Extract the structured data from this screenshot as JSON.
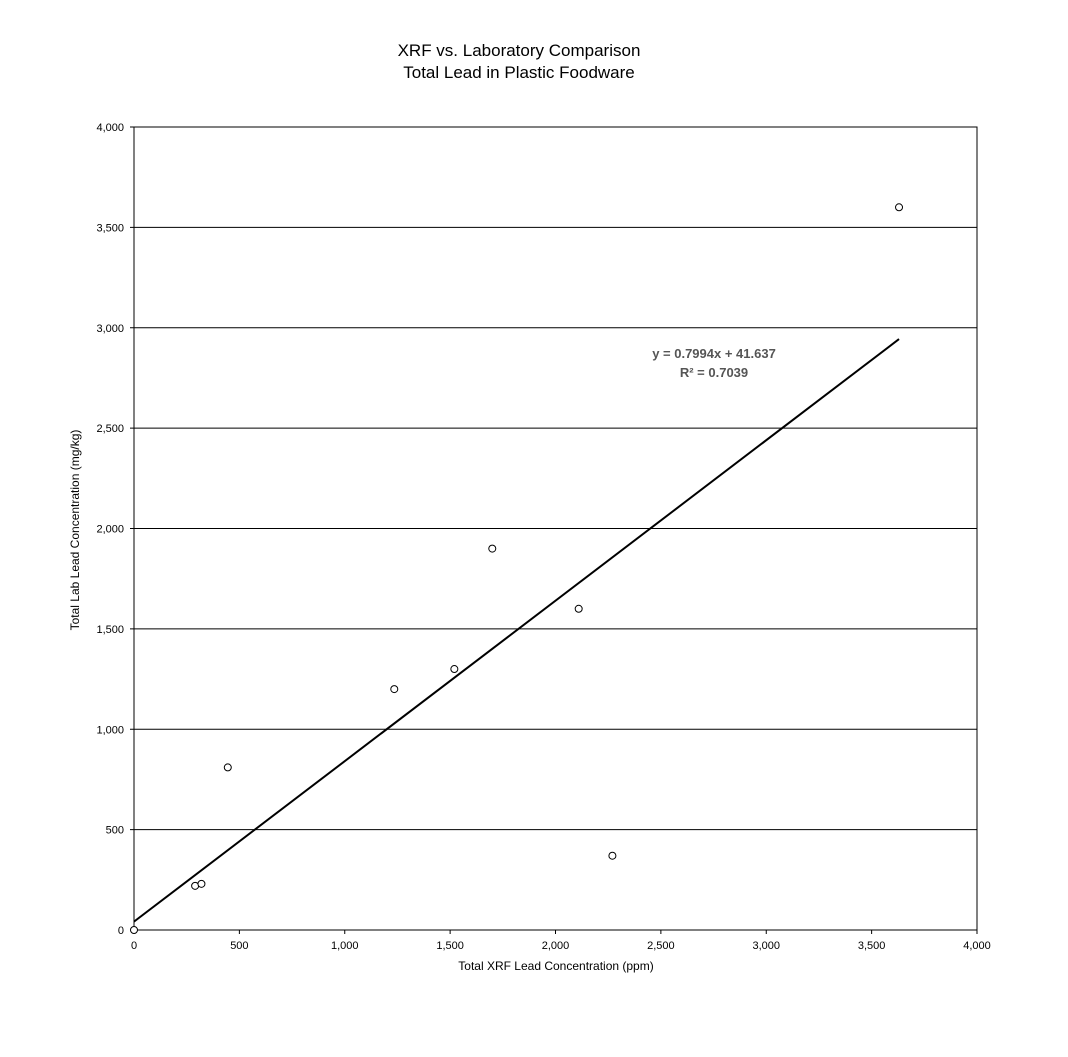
{
  "chart_data": {
    "type": "scatter",
    "title": "XRF vs. Laboratory Comparison",
    "subtitle": "Total Lead in Plastic Foodware",
    "xlabel": "Total  XRF Lead Concentration (ppm)",
    "ylabel": "Total  Lab Lead Concentration (mg/kg)",
    "xlim": [
      0,
      4000
    ],
    "ylim": [
      0,
      4000
    ],
    "x_ticks": [
      0,
      500,
      1000,
      1500,
      2000,
      2500,
      3000,
      3500,
      4000
    ],
    "x_tick_labels": [
      "0",
      "500",
      "1,000",
      "1,500",
      "2,000",
      "2,500",
      "3,000",
      "3,500",
      "4,000"
    ],
    "y_ticks": [
      0,
      500,
      1000,
      1500,
      2000,
      2500,
      3000,
      3500,
      4000
    ],
    "y_tick_labels": [
      "0",
      "500",
      "1,000",
      "1,500",
      "2,000",
      "2,500",
      "3,000",
      "3,500",
      "4,000"
    ],
    "grid": "horizontal",
    "legend": "none",
    "points": [
      {
        "x": 0,
        "y": 0
      },
      {
        "x": 290,
        "y": 220
      },
      {
        "x": 320,
        "y": 230
      },
      {
        "x": 445,
        "y": 810
      },
      {
        "x": 1235,
        "y": 1200
      },
      {
        "x": 1520,
        "y": 1300
      },
      {
        "x": 1700,
        "y": 1900
      },
      {
        "x": 2110,
        "y": 1600
      },
      {
        "x": 2270,
        "y": 370
      },
      {
        "x": 3630,
        "y": 3600
      }
    ],
    "trendline": {
      "slope": 0.7994,
      "intercept": 41.637,
      "x_range": [
        0,
        3630
      ],
      "equation_label": "y = 0.7994x + 41.637",
      "r2_label": "R² = 0.7039"
    },
    "colors": {
      "marker_stroke": "#000000",
      "marker_fill": "#ffffff",
      "trendline": "#000000",
      "gridline": "#000000",
      "annotation": "#555555"
    }
  }
}
